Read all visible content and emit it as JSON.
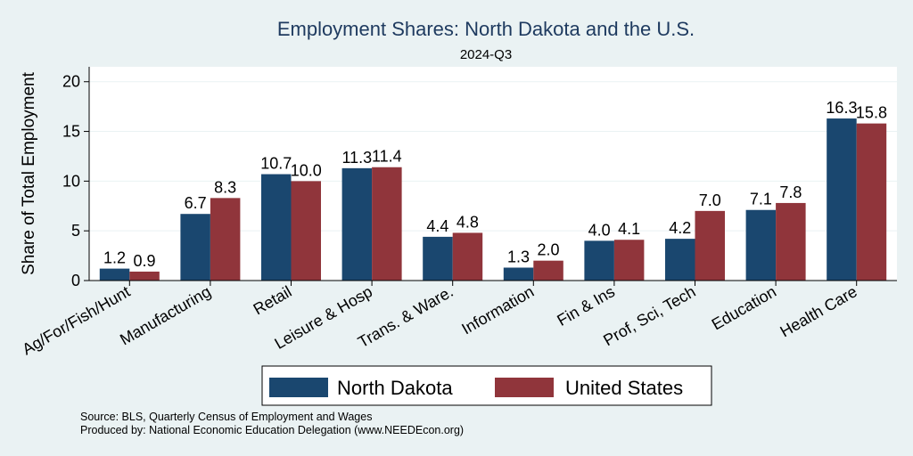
{
  "chart_data": {
    "type": "bar",
    "title": "Employment Shares: North Dakota and the U.S.",
    "subtitle": "2024-Q3",
    "ylabel": "Share of Total Employment",
    "xlabel": "",
    "ylim": [
      0,
      21.5
    ],
    "yticks": [
      0,
      5,
      10,
      15,
      20
    ],
    "grid": true,
    "legend_position": "bottom",
    "categories": [
      "Ag/For/Fish/Hunt",
      "Manufacturing",
      "Retail",
      "Leisure & Hosp",
      "Trans. & Ware.",
      "Information",
      "Fin & Ins",
      "Prof, Sci, Tech",
      "Education",
      "Health Care"
    ],
    "series": [
      {
        "name": "North Dakota",
        "color": "#1a476f",
        "values": [
          1.2,
          6.7,
          10.7,
          11.3,
          4.4,
          1.3,
          4.0,
          4.2,
          7.1,
          16.3
        ],
        "labels": [
          "1.2",
          "6.7",
          "10.7",
          "11.3",
          "4.4",
          "1.3",
          "4.0",
          "4.2",
          "7.1",
          "16.3"
        ]
      },
      {
        "name": "United States",
        "color": "#90353b",
        "values": [
          0.9,
          8.3,
          10.0,
          11.4,
          4.8,
          2.0,
          4.1,
          7.0,
          7.8,
          15.8
        ],
        "labels": [
          "0.9",
          "8.3",
          "10.0",
          "11.4",
          "4.8",
          "2.0",
          "4.1",
          "7.0",
          "7.8",
          "15.8"
        ]
      }
    ]
  },
  "notes": {
    "source": "Source: BLS, Quarterly Census of Employment and Wages",
    "produced_by": "Produced by: National Economic Education Delegation (www.NEEDEcon.org)"
  },
  "colors": {
    "background": "#eaf2f3",
    "plot_background": "#ffffff",
    "grid": "#eaf2f3",
    "title": "#1e3a5f"
  }
}
